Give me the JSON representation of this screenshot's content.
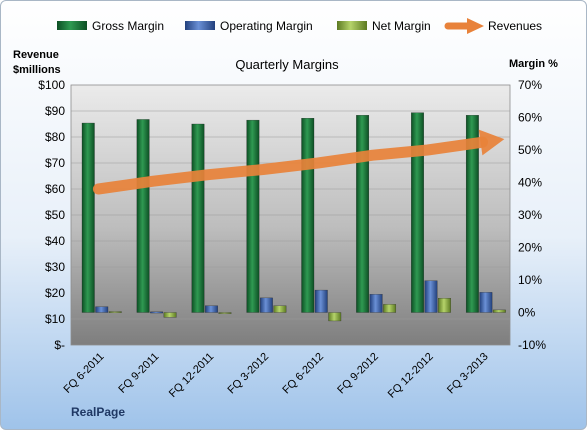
{
  "chart_data": {
    "type": "bar",
    "title": "Quarterly Margins",
    "ylabel_left": [
      "Revenue",
      "$millions"
    ],
    "ylabel_right": "Margin %",
    "brand": "RealPage",
    "categories": [
      "FQ 6-2011",
      "FQ 9-2011",
      "FQ 12-2011",
      "FQ 3-2012",
      "FQ 6-2012",
      "FQ 9-2012",
      "FQ 12-2012",
      "FQ 3-2013"
    ],
    "y_left_ticks": [
      "$-",
      "$10",
      "$20",
      "$30",
      "$40",
      "$50",
      "$60",
      "$70",
      "$80",
      "$90",
      "$100"
    ],
    "y_left_range": [
      0,
      100
    ],
    "y_right_ticks": [
      "-10%",
      "0%",
      "10%",
      "20%",
      "30%",
      "40%",
      "50%",
      "60%",
      "70%"
    ],
    "y_right_range": [
      -10,
      70
    ],
    "series": [
      {
        "name": "Gross Margin",
        "axis": "right",
        "color": "#1e7a3c",
        "values": [
          58.3,
          59.4,
          58,
          59.2,
          59.8,
          60.7,
          61.5,
          60.7
        ]
      },
      {
        "name": "Operating Margin",
        "axis": "right",
        "color": "#3b63b0",
        "values": [
          1.8,
          0.2,
          2.1,
          4.5,
          6.9,
          5.6,
          9.8,
          6.2
        ]
      },
      {
        "name": "Net Margin",
        "axis": "right",
        "color": "#8bad3f",
        "values": [
          0.3,
          -1.5,
          -0.2,
          2.1,
          -2.6,
          2.5,
          4.4,
          0.8
        ]
      }
    ],
    "revenues": {
      "name": "Revenues",
      "axis": "left",
      "color": "#e8823a",
      "values": [
        60,
        63,
        65.5,
        67.5,
        70,
        73,
        75,
        78
      ]
    },
    "legend": "top"
  }
}
